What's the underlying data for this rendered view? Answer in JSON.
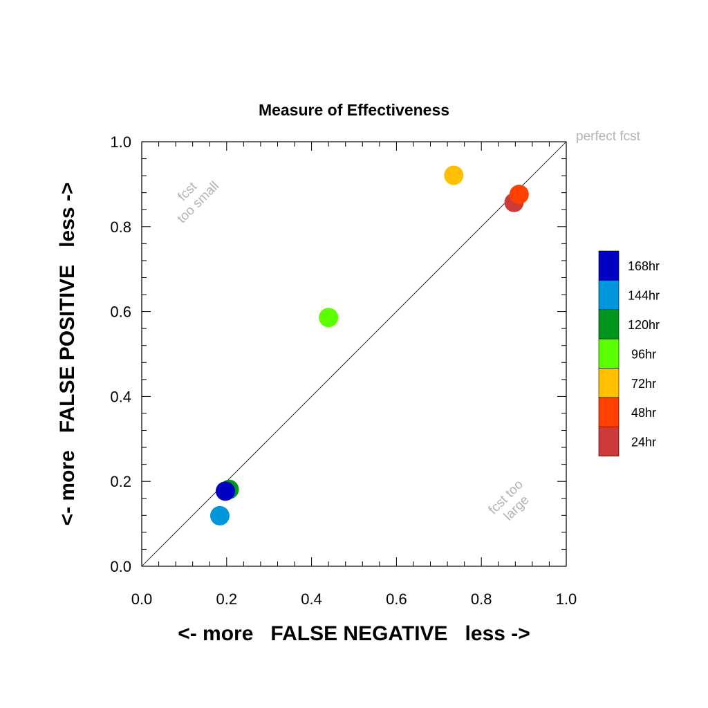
{
  "chart_data": {
    "type": "scatter",
    "title": "Measure of Effectiveness",
    "xlabel": "<- more   FALSE NEGATIVE   less ->",
    "ylabel": "<- more   FALSE POSITIVE   less ->",
    "xlim": [
      0.0,
      1.0
    ],
    "ylim": [
      0.0,
      1.0
    ],
    "xticks": [
      "0.0",
      "0.2",
      "0.4",
      "0.6",
      "0.8",
      "1.0"
    ],
    "yticks": [
      "0.0",
      "0.2",
      "0.4",
      "0.6",
      "0.8",
      "1.0"
    ],
    "grid": false,
    "reference_line": {
      "from": [
        0,
        0
      ],
      "to": [
        1,
        1
      ],
      "label": "perfect fcst"
    },
    "annotations": [
      {
        "text": "fcst\ntoo small",
        "x": 0.12,
        "y": 0.87
      },
      {
        "text": "fcst too\nlarge",
        "x": 0.87,
        "y": 0.15
      }
    ],
    "legend_position": "right",
    "series": [
      {
        "name": "168hr",
        "color": "#0000c4",
        "x": [
          0.197
        ],
        "y": [
          0.177
        ]
      },
      {
        "name": "144hr",
        "color": "#0096dc",
        "x": [
          0.184
        ],
        "y": [
          0.119
        ]
      },
      {
        "name": "120hr",
        "color": "#00961e",
        "x": [
          0.206
        ],
        "y": [
          0.181
        ]
      },
      {
        "name": "96hr",
        "color": "#5aff00",
        "x": [
          0.44
        ],
        "y": [
          0.586
        ]
      },
      {
        "name": "72hr",
        "color": "#ffc000",
        "x": [
          0.735
        ],
        "y": [
          0.921
        ]
      },
      {
        "name": "48hr",
        "color": "#ff4000",
        "x": [
          0.889
        ],
        "y": [
          0.876
        ]
      },
      {
        "name": "24hr",
        "color": "#cc3a3a",
        "x": [
          0.877
        ],
        "y": [
          0.857
        ]
      }
    ]
  }
}
